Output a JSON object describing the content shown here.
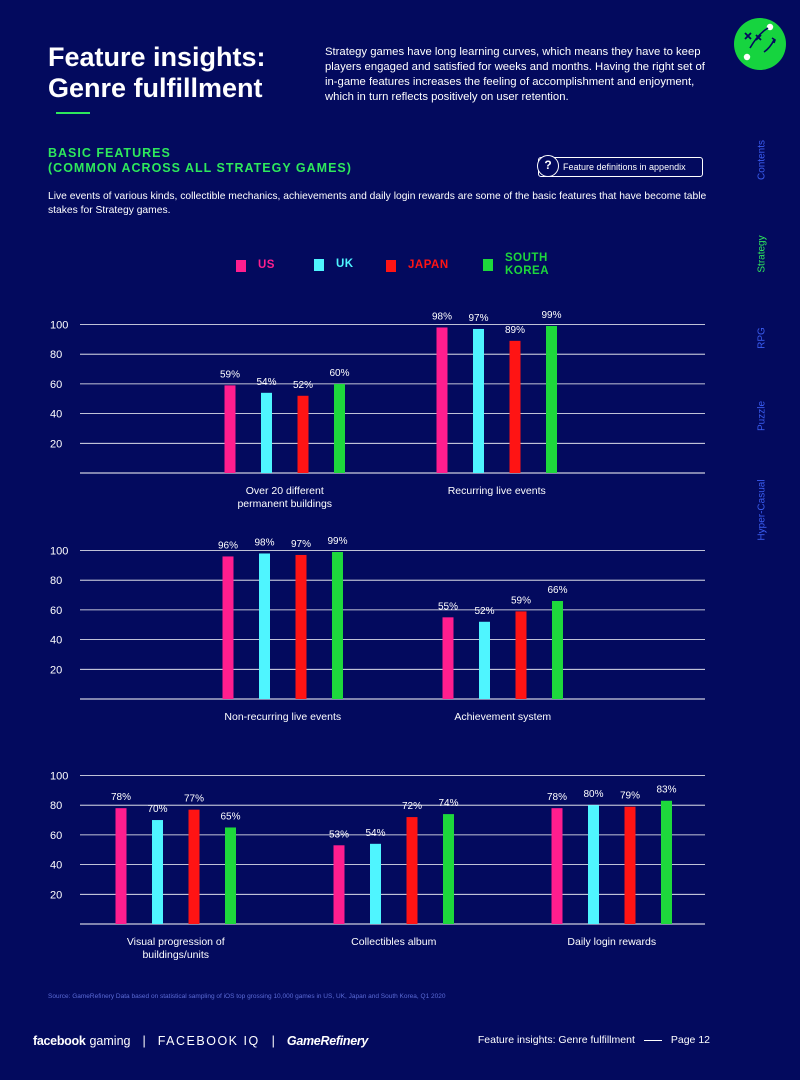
{
  "header": {
    "title": "Feature insights: Genre fulfillment",
    "intro": "Strategy games have long learning curves, which means they have to keep players engaged and satisfied for weeks and months. Having the right set of in-game features increases the feeling of accomplishment and enjoyment, which in turn reflects positively on user retention."
  },
  "section": {
    "title_line1": "BASIC FEATURES",
    "title_line2": "(COMMON ACROSS ALL STRATEGY GAMES)",
    "appendix_label": "Feature definitions in appendix",
    "description": "Live events of various kinds, collectible mechanics, achievements and daily login rewards are some of the basic features that have become table stakes for Strategy games."
  },
  "legend": [
    {
      "label": "US",
      "color": "#ff1e8e"
    },
    {
      "label": "UK",
      "color": "#4ff5ff"
    },
    {
      "label": "JAPAN",
      "color": "#ff1414"
    },
    {
      "label": "SOUTH KOREA",
      "line1": "SOUTH",
      "line2": "KOREA",
      "color": "#1ed83c"
    }
  ],
  "side_nav": [
    "Contents",
    "Strategy",
    "RPG",
    "Puzzle",
    "Hyper-Casual"
  ],
  "chart_data": {
    "type": "bar",
    "series": [
      "US",
      "UK",
      "JAPAN",
      "SOUTH KOREA"
    ],
    "ylim": [
      0,
      100
    ],
    "yticks": [
      20,
      40,
      60,
      80,
      100
    ],
    "groups": [
      {
        "label": "Over 20 different permanent buildings",
        "label_lines": [
          "Over 20 different",
          "permanent buildings"
        ],
        "values": [
          59,
          54,
          52,
          60
        ]
      },
      {
        "label": "Recurring live events",
        "label_lines": [
          "Recurring live events"
        ],
        "values": [
          98,
          97,
          89,
          99
        ]
      },
      {
        "label": "Non-recurring live events",
        "label_lines": [
          "Non-recurring live events"
        ],
        "values": [
          96,
          98,
          97,
          99
        ]
      },
      {
        "label": "Achievement system",
        "label_lines": [
          "Achievement system"
        ],
        "values": [
          55,
          52,
          59,
          66
        ]
      },
      {
        "label": "Visual progression of buildings/units",
        "label_lines": [
          "Visual progression of",
          "buildings/units"
        ],
        "values": [
          78,
          70,
          77,
          65
        ]
      },
      {
        "label": "Collectibles album",
        "label_lines": [
          "Collectibles album"
        ],
        "values": [
          53,
          54,
          72,
          74
        ]
      },
      {
        "label": "Daily login rewards",
        "label_lines": [
          "Daily login rewards"
        ],
        "values": [
          78,
          80,
          79,
          83
        ]
      }
    ]
  },
  "footer": {
    "source": "Source: GameRefinery Data based on statistical sampling of iOS top grossing 10,000 games in US, UK, Japan and South Korea, Q1 2020",
    "brand_facebook": "facebook",
    "brand_gaming": "gaming",
    "brand_iq": "FACEBOOK IQ",
    "brand_gr": "GameRefinery",
    "page_title": "Feature insights: Genre fulfillment",
    "page_number": "Page 12"
  }
}
